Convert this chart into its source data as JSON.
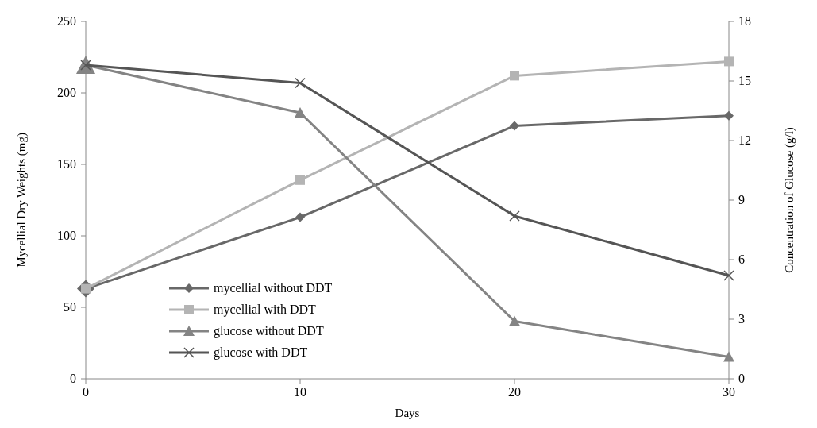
{
  "chart_data": {
    "type": "line",
    "xlabel": "Days",
    "ylabel": "Mycellial Dry Weights (mg)",
    "y2label": "Concentration of Glucose (g/l)",
    "x": [
      0,
      10,
      20,
      30
    ],
    "xlim": [
      0,
      30
    ],
    "xticks": [
      0,
      10,
      20,
      30
    ],
    "ylim": [
      0,
      250
    ],
    "yticks": [
      0,
      50,
      100,
      150,
      200,
      250
    ],
    "y2lim": [
      0,
      18
    ],
    "y2ticks": [
      0,
      3,
      6,
      9,
      12,
      15,
      18
    ],
    "grid": false,
    "legend": "left",
    "series": [
      {
        "name": "mycellial without DDT",
        "color": "#686868",
        "marker": "diamond",
        "values": [
          63,
          113,
          177,
          184
        ]
      },
      {
        "name": "mycellial with DDT",
        "color": "#b4b4b4",
        "marker": "square",
        "values": [
          63,
          139,
          212,
          222
        ]
      },
      {
        "name": "glucose without DDT",
        "color": "#848484",
        "marker": "triangle",
        "axis": "y2",
        "values": [
          15.8,
          13.4,
          2.9,
          1.1
        ]
      },
      {
        "name": "glucose with DDT",
        "color": "#555555",
        "marker": "cross",
        "axis": "y2",
        "values": [
          15.8,
          14.9,
          8.2,
          5.2
        ]
      }
    ]
  }
}
